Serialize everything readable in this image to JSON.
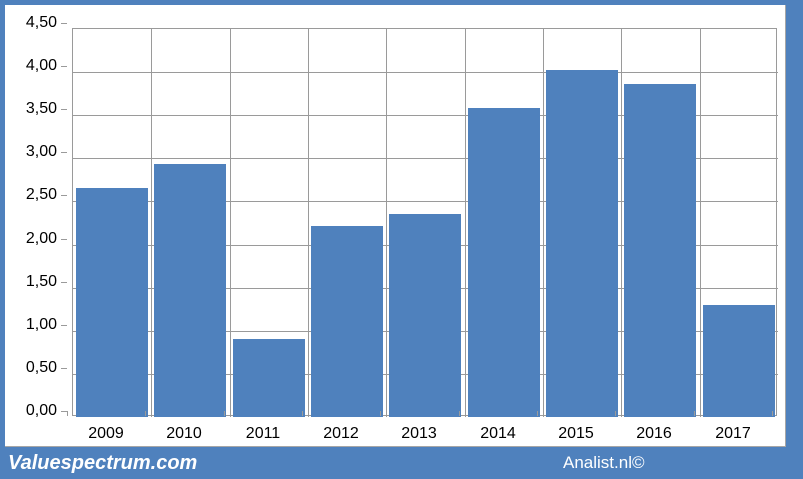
{
  "chart_data": {
    "type": "bar",
    "title": "",
    "xlabel": "",
    "ylabel": "",
    "categories": [
      "2009",
      "2010",
      "2011",
      "2012",
      "2013",
      "2014",
      "2015",
      "2016",
      "2017"
    ],
    "values": [
      2.66,
      2.93,
      0.9,
      2.21,
      2.36,
      3.58,
      4.03,
      3.86,
      1.3
    ],
    "ylim": [
      0,
      4.5
    ],
    "ytick_step": 0.5,
    "ytick_labels": [
      "0,00",
      "0,50",
      "1,00",
      "1,50",
      "2,00",
      "2,50",
      "3,00",
      "3,50",
      "4,00",
      "4,50"
    ],
    "decimal_separator": ",",
    "grid": true,
    "legend": "none",
    "bar_color": "#4f81bd",
    "gridline_color": "#9a9a9a",
    "plot_background": "#ffffff",
    "label_color": "#000000"
  },
  "frame": {
    "background_color": "#4f81bd",
    "chart_area_color": "#ffffff"
  },
  "footer": {
    "left_text": "Valuespectrum.com",
    "right_text": "Analist.nl©",
    "background_color": "#4f81bd",
    "text_color": "#ffffff"
  }
}
